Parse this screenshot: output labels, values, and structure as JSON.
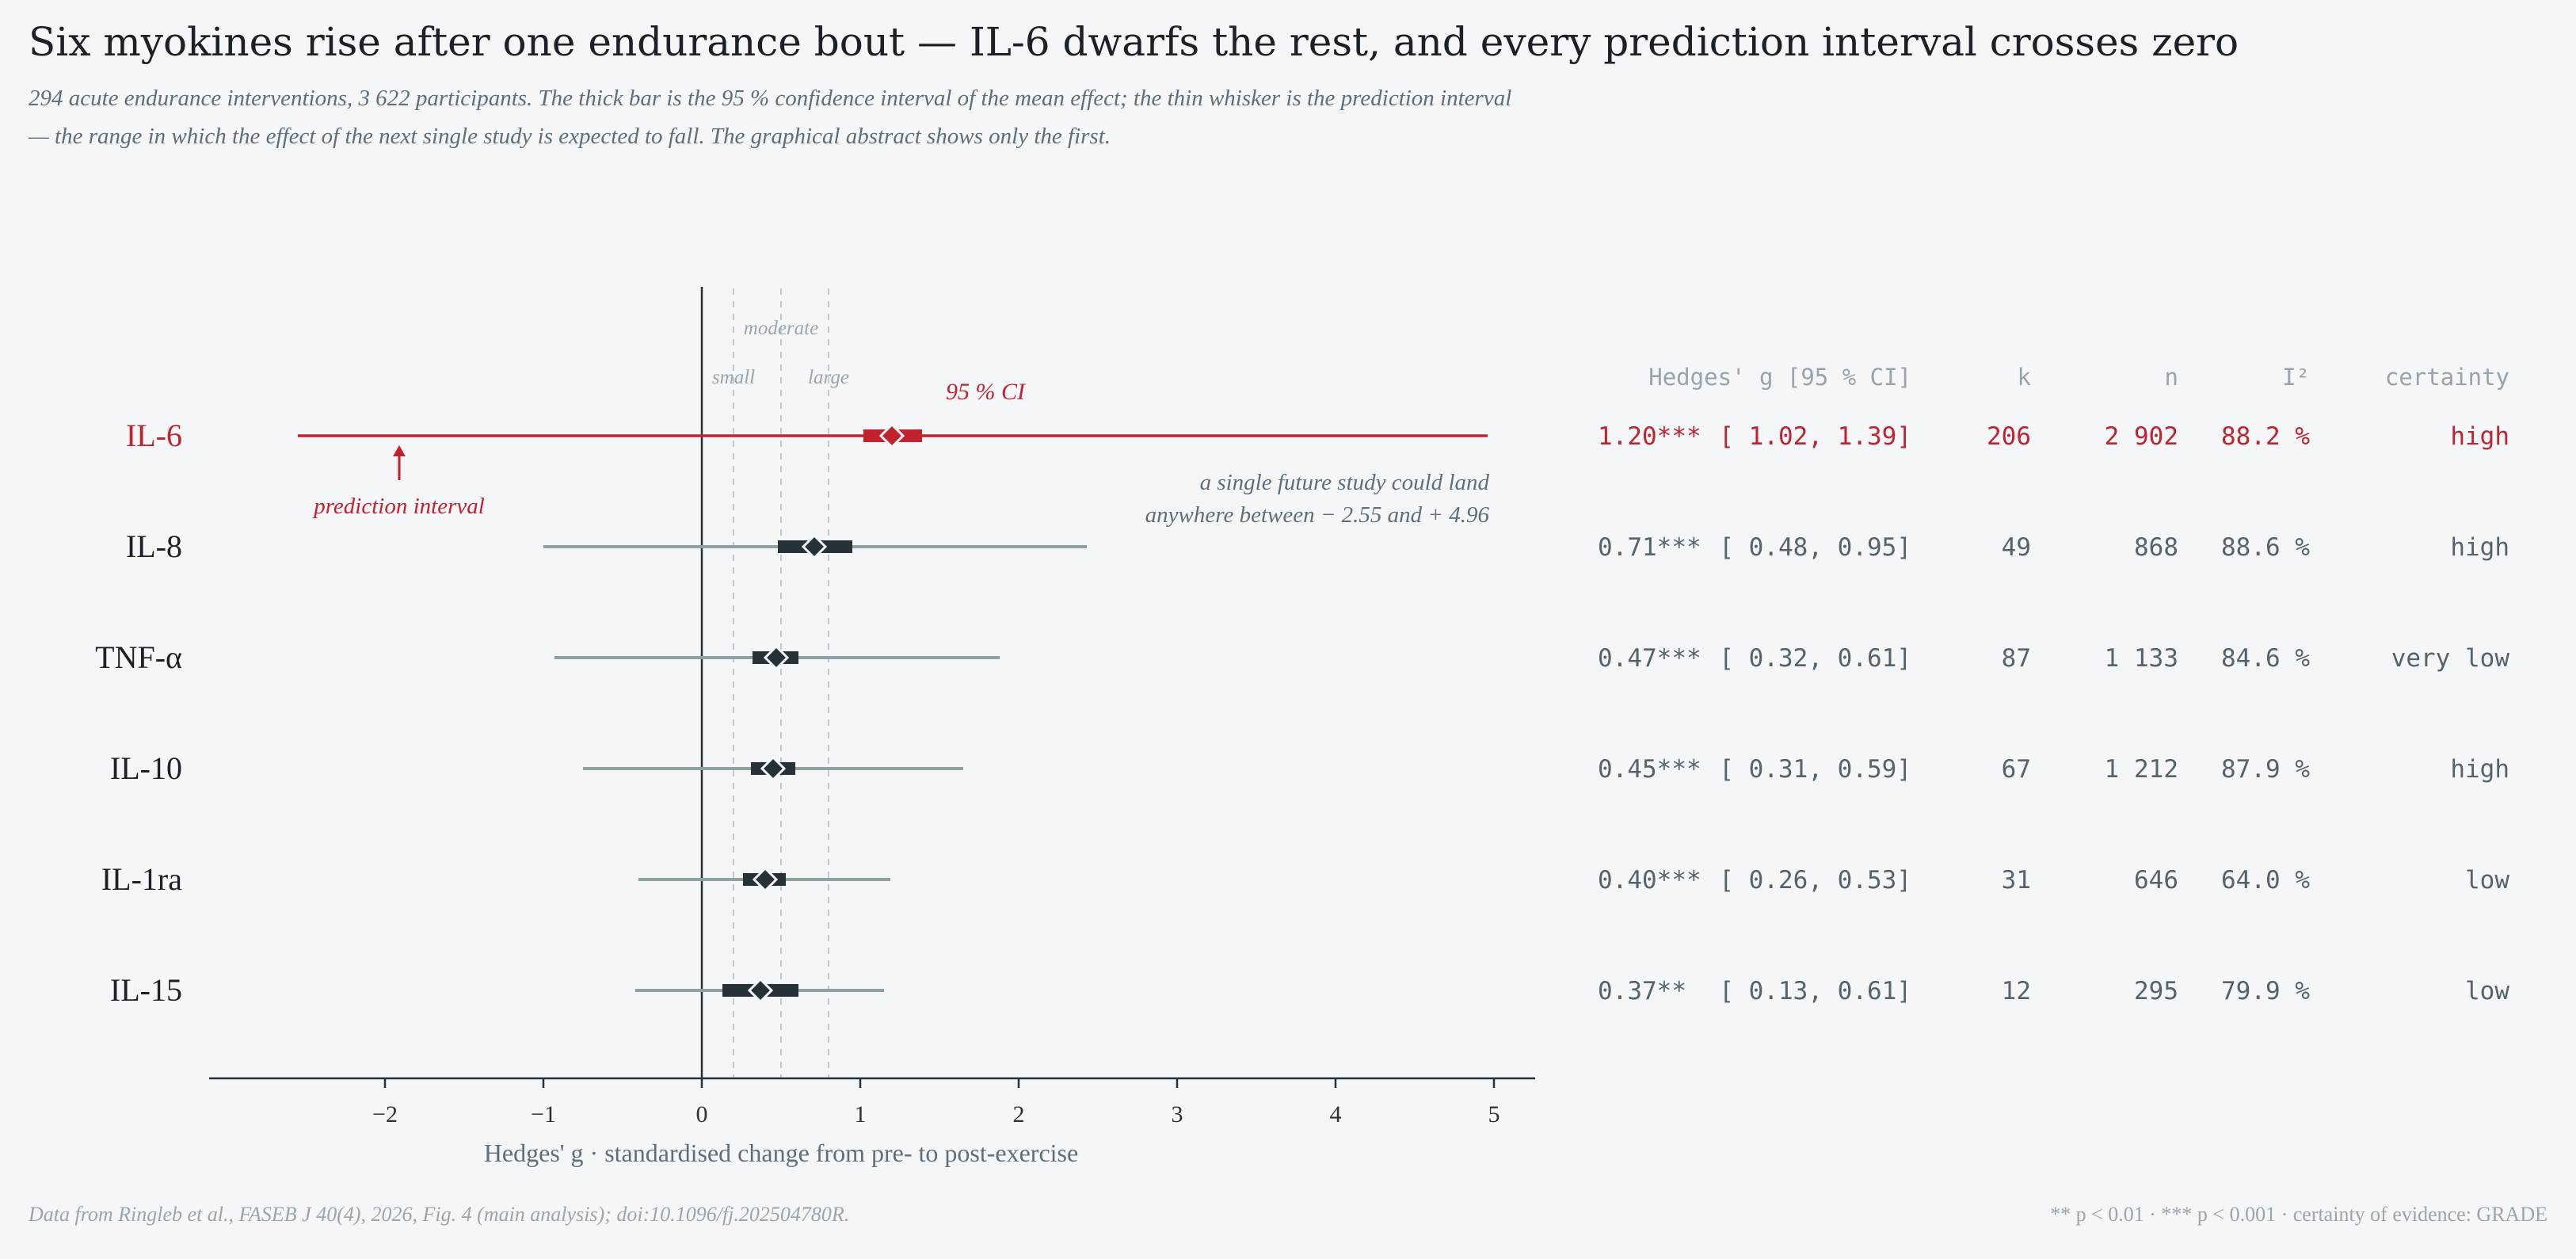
{
  "title": "Six myokines rise after one endurance bout — IL-6 dwarfs the rest, and every prediction interval crosses zero",
  "subtitle": "294 acute endurance interventions, 3 622 participants. The thick bar is the 95 % confidence interval of the mean effect; the thin whisker is the prediction interval — the range in which the effect of the next single study is expected to fall. The graphical abstract shows only the first.",
  "footnote_left": "Data from Ringleb et al., FASEB J 40(4), 2026, Fig. 4 (main analysis); doi:10.1096/fj.202504780R.",
  "footnote_right": "** p < 0.01 · *** p < 0.001 · certainty of evidence: GRADE",
  "colors": {
    "highlight": "#c0222e",
    "dark": "#263138",
    "whisker": "#8fa0a4",
    "muted": "#8e9aa2",
    "text": "#1b2126",
    "table_text": "#56636c"
  },
  "chart_data": {
    "type": "forest",
    "xlabel": "Hedges' g   ·   standardised change from pre- to post-exercise",
    "xlim": [
      -3.2,
      5.3
    ],
    "xticks": [
      -2,
      -1,
      0,
      1,
      2,
      3,
      4,
      5
    ],
    "xtick_labels": [
      "−2",
      "−1",
      "0",
      "1",
      "2",
      "3",
      "4",
      "5"
    ],
    "reference_lines": [
      {
        "value": 0.2,
        "label": "small"
      },
      {
        "value": 0.5,
        "label": "moderate"
      },
      {
        "value": 0.8,
        "label": "large"
      }
    ],
    "table_headers": {
      "g_ci": "Hedges' g   [95 % CI]",
      "k": "k",
      "n": "n",
      "i2": "I²",
      "certainty": "certainty"
    },
    "rows": [
      {
        "name": "IL-6",
        "g": 1.2,
        "ci": [
          1.02,
          1.39
        ],
        "pi": [
          -2.55,
          4.96
        ],
        "g_text": "1.20***",
        "ci_text": "[ 1.02, 1.39]",
        "k": "206",
        "n": "2 902",
        "i2": "88.2 %",
        "certainty": "high",
        "highlight": true
      },
      {
        "name": "IL-8",
        "g": 0.71,
        "ci": [
          0.48,
          0.95
        ],
        "pi": [
          -1.0,
          2.43
        ],
        "g_text": "0.71***",
        "ci_text": "[ 0.48, 0.95]",
        "k": "49",
        "n": "868",
        "i2": "88.6 %",
        "certainty": "high",
        "highlight": false
      },
      {
        "name": "TNF-α",
        "g": 0.47,
        "ci": [
          0.32,
          0.61
        ],
        "pi": [
          -0.93,
          1.88
        ],
        "g_text": "0.47***",
        "ci_text": "[ 0.32, 0.61]",
        "k": "87",
        "n": "1 133",
        "i2": "84.6 %",
        "certainty": "very low",
        "highlight": false
      },
      {
        "name": "IL-10",
        "g": 0.45,
        "ci": [
          0.31,
          0.59
        ],
        "pi": [
          -0.75,
          1.65
        ],
        "g_text": "0.45***",
        "ci_text": "[ 0.31, 0.59]",
        "k": "67",
        "n": "1 212",
        "i2": "87.9 %",
        "certainty": "high",
        "highlight": false
      },
      {
        "name": "IL-1ra",
        "g": 0.4,
        "ci": [
          0.26,
          0.53
        ],
        "pi": [
          -0.4,
          1.19
        ],
        "g_text": "0.40***",
        "ci_text": "[ 0.26, 0.53]",
        "k": "31",
        "n": "646",
        "i2": "64.0 %",
        "certainty": "low",
        "highlight": false
      },
      {
        "name": "IL-15",
        "g": 0.37,
        "ci": [
          0.13,
          0.61
        ],
        "pi": [
          -0.42,
          1.15
        ],
        "g_text": "0.37**",
        "ci_text": "[ 0.13, 0.61]",
        "k": "12",
        "n": "295",
        "i2": "79.9 %",
        "certainty": "low",
        "highlight": false
      }
    ],
    "annotations": {
      "ci": "95 % CI",
      "pi": "prediction interval",
      "range_line1": "a single future study could land",
      "range_line2": "anywhere between − 2.55 and + 4.96"
    }
  }
}
